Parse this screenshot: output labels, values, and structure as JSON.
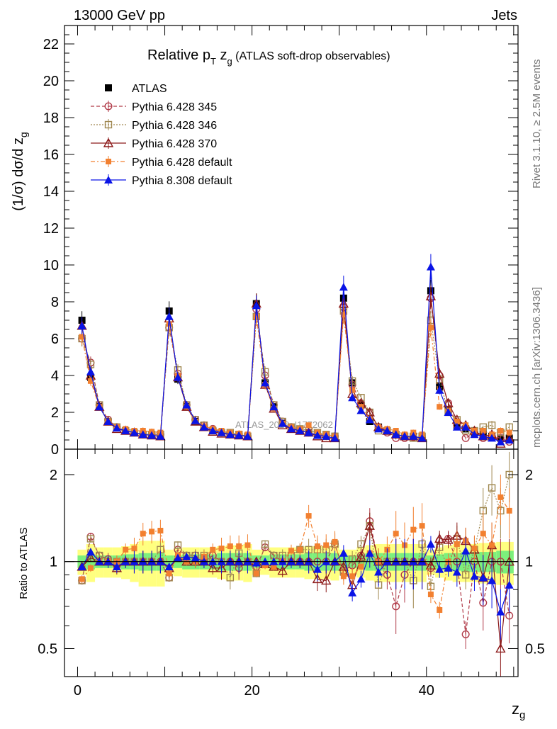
{
  "header": {
    "left": "13000 GeV pp",
    "right": "Jets"
  },
  "side_labels": {
    "rivet": "Rivet 3.1.10, ≥ 2.5M events",
    "mcplots": "mcplots.cern.ch [arXiv:1306.3436]"
  },
  "watermark": "ATLAS_2019_I1772062",
  "chart_data": [
    {
      "type": "scatter",
      "title_main": "Relative p",
      "title_sub1": "T",
      "title_mid": " z",
      "title_sub2": "g",
      "title_paren": " (ATLAS soft-drop observables)",
      "ylabel": "(1/σ) dσ/d z",
      "ylabel_sub": "g",
      "xlim": [
        -1.5,
        50.5
      ],
      "ylim": [
        0,
        23
      ],
      "y_ticks": [
        0,
        2,
        4,
        6,
        8,
        10,
        12,
        14,
        16,
        18,
        20,
        22
      ],
      "legend_position": "top-left",
      "x": [
        0.5,
        1.5,
        2.5,
        3.5,
        4.5,
        5.5,
        6.5,
        7.5,
        8.5,
        9.5,
        10.5,
        11.5,
        12.5,
        13.5,
        14.5,
        15.5,
        16.5,
        17.5,
        18.5,
        19.5,
        20.5,
        21.5,
        22.5,
        23.5,
        24.5,
        25.5,
        26.5,
        27.5,
        28.5,
        29.5,
        30.5,
        31.5,
        32.5,
        33.5,
        34.5,
        35.5,
        36.5,
        37.5,
        38.5,
        39.5,
        40.5,
        41.5,
        42.5,
        43.5,
        44.5,
        45.5,
        46.5,
        47.5,
        48.5,
        49.5
      ],
      "series": [
        {
          "name": "ATLAS",
          "color": "#000000",
          "marker": "square-filled",
          "line": "none",
          "values": [
            7.0,
            3.9,
            2.3,
            1.5,
            1.2,
            1.0,
            0.9,
            0.8,
            0.75,
            0.7,
            7.5,
            3.8,
            2.3,
            1.5,
            1.2,
            1.0,
            0.9,
            0.8,
            0.75,
            0.7,
            7.9,
            3.6,
            2.3,
            1.4,
            1.1,
            1.0,
            0.9,
            0.8,
            0.7,
            0.6,
            8.2,
            3.6,
            2.4,
            1.5,
            1.2,
            1.0,
            0.8,
            0.7,
            0.7,
            0.6,
            8.6,
            3.4,
            2.1,
            1.3,
            1.1,
            0.9,
            0.8,
            0.7,
            0.6,
            0.6
          ]
        },
        {
          "name": "Pythia 6.428 345",
          "color": "#b03a48",
          "marker": "circle-open",
          "line": "dashed",
          "values": [
            6.0,
            4.7,
            2.4,
            1.6,
            1.2,
            1.0,
            0.9,
            0.8,
            0.8,
            0.8,
            6.6,
            4.1,
            2.4,
            1.6,
            1.3,
            1.1,
            0.9,
            0.8,
            0.75,
            0.7,
            7.6,
            4.0,
            2.4,
            1.5,
            1.2,
            1.0,
            0.9,
            0.8,
            0.75,
            0.7,
            7.7,
            3.5,
            2.5,
            2.0,
            1.2,
            0.9,
            0.6,
            0.6,
            0.65,
            0.6,
            8.2,
            4.0,
            2.5,
            1.3,
            0.6,
            0.9,
            0.6,
            0.7,
            0.6,
            0.4
          ]
        },
        {
          "name": "Pythia 6.428 346",
          "color": "#a08850",
          "marker": "square-open",
          "line": "dotted",
          "values": [
            6.0,
            4.6,
            2.4,
            1.5,
            1.2,
            1.0,
            0.9,
            0.8,
            0.8,
            0.8,
            6.6,
            4.3,
            2.4,
            1.6,
            1.3,
            1.0,
            0.9,
            0.9,
            0.8,
            0.7,
            7.2,
            4.2,
            2.4,
            1.5,
            1.2,
            1.1,
            1.0,
            0.9,
            0.8,
            0.7,
            7.5,
            3.7,
            2.8,
            2.0,
            1.0,
            1.0,
            0.8,
            0.7,
            0.6,
            0.7,
            7.0,
            3.8,
            2.0,
            1.6,
            1.0,
            1.0,
            1.2,
            1.3,
            0.9,
            1.2
          ]
        },
        {
          "name": "Pythia 6.428 370",
          "color": "#8c1a1a",
          "marker": "triangle-open",
          "line": "solid",
          "values": [
            6.7,
            4.0,
            2.3,
            1.5,
            1.1,
            1.0,
            0.9,
            0.8,
            0.75,
            0.7,
            7.1,
            3.9,
            2.3,
            1.5,
            1.2,
            0.95,
            0.85,
            0.8,
            0.75,
            0.7,
            7.9,
            3.5,
            2.2,
            1.3,
            1.1,
            1.0,
            0.9,
            0.7,
            0.6,
            0.6,
            7.9,
            3.0,
            2.5,
            2.0,
            1.2,
            1.0,
            0.8,
            0.7,
            0.7,
            0.6,
            8.3,
            4.1,
            2.5,
            1.6,
            1.3,
            1.0,
            0.7,
            0.8,
            0.3,
            0.6
          ]
        },
        {
          "name": "Pythia 6.428 default",
          "color": "#f28030",
          "marker": "square-filled-small",
          "line": "dashdot",
          "values": [
            6.1,
            3.7,
            2.3,
            1.5,
            1.2,
            1.1,
            1.0,
            1.0,
            0.95,
            0.9,
            6.8,
            4.0,
            2.3,
            1.5,
            1.25,
            1.1,
            1.0,
            0.9,
            0.85,
            0.8,
            7.2,
            3.5,
            2.2,
            1.4,
            1.2,
            1.1,
            1.3,
            0.9,
            0.8,
            0.7,
            7.3,
            3.2,
            2.3,
            1.6,
            1.2,
            1.1,
            1.0,
            0.8,
            0.9,
            0.8,
            6.6,
            2.3,
            2.1,
            1.5,
            1.3,
            1.0,
            1.0,
            0.8,
            1.0,
            0.9
          ]
        },
        {
          "name": "Pythia 8.308 default",
          "color": "#0a14e6",
          "marker": "triangle-filled",
          "line": "solid",
          "values": [
            6.7,
            4.2,
            2.3,
            1.5,
            1.15,
            1.0,
            0.9,
            0.8,
            0.75,
            0.7,
            7.2,
            3.9,
            2.4,
            1.55,
            1.2,
            1.0,
            0.9,
            0.8,
            0.75,
            0.7,
            7.8,
            3.6,
            2.3,
            1.4,
            1.1,
            1.0,
            0.9,
            0.75,
            0.7,
            0.6,
            8.8,
            2.8,
            2.1,
            1.6,
            1.1,
            1.0,
            0.8,
            0.7,
            0.7,
            0.6,
            9.9,
            3.2,
            2.0,
            1.2,
            1.2,
            0.8,
            0.7,
            0.6,
            0.4,
            0.5
          ]
        }
      ]
    },
    {
      "type": "scatter",
      "ylabel": "Ratio to ATLAS",
      "xlabel": "z",
      "xlabel_sub": "g",
      "xlim": [
        -1.5,
        50.5
      ],
      "ylim": [
        0.4,
        2.45
      ],
      "y_scale": "log",
      "y_ticks": [
        0.5,
        1,
        2
      ],
      "x_ticks": [
        0,
        20,
        40
      ],
      "reference_line": 1,
      "uncertainty_band": {
        "inner_color": "#7cf07c",
        "outer_color": "#ffff80",
        "inner_half_width": [
          0.05,
          0.06,
          0.05,
          0.05,
          0.05,
          0.06,
          0.06,
          0.07,
          0.07,
          0.07,
          0.05,
          0.05,
          0.06,
          0.06,
          0.06,
          0.06,
          0.07,
          0.07,
          0.07,
          0.07,
          0.05,
          0.05,
          0.06,
          0.06,
          0.06,
          0.06,
          0.07,
          0.07,
          0.07,
          0.07,
          0.05,
          0.05,
          0.06,
          0.07,
          0.07,
          0.07,
          0.07,
          0.07,
          0.07,
          0.07,
          0.05,
          0.06,
          0.07,
          0.07,
          0.08,
          0.08,
          0.08,
          0.08,
          0.09,
          0.09
        ],
        "outer_half_width": [
          0.1,
          0.15,
          0.12,
          0.12,
          0.12,
          0.13,
          0.15,
          0.18,
          0.18,
          0.18,
          0.1,
          0.11,
          0.12,
          0.12,
          0.12,
          0.12,
          0.13,
          0.14,
          0.14,
          0.15,
          0.1,
          0.1,
          0.12,
          0.12,
          0.12,
          0.12,
          0.13,
          0.13,
          0.13,
          0.14,
          0.1,
          0.1,
          0.12,
          0.14,
          0.15,
          0.15,
          0.15,
          0.15,
          0.15,
          0.15,
          0.1,
          0.12,
          0.14,
          0.15,
          0.15,
          0.15,
          0.16,
          0.16,
          0.17,
          0.17
        ]
      },
      "series": [
        {
          "name": "Pythia 6.428 345",
          "values": [
            0.86,
            1.22,
            1.05,
            1.02,
            0.97,
            1.0,
            1.0,
            1.0,
            1.0,
            1.0,
            0.88,
            1.1,
            1.05,
            1.05,
            1.0,
            1.05,
            1.0,
            1.0,
            0.95,
            1.0,
            0.96,
            1.12,
            1.05,
            1.0,
            1.0,
            1.0,
            1.0,
            1.0,
            1.0,
            1.15,
            0.93,
            0.97,
            1.05,
            1.38,
            1.0,
            0.9,
            0.7,
            0.9,
            1.0,
            1.0,
            0.95,
            1.18,
            1.2,
            1.0,
            0.56,
            1.0,
            0.72,
            1.0,
            1.0,
            0.65
          ]
        },
        {
          "name": "Pythia 6.428 346",
          "values": [
            0.86,
            1.2,
            1.05,
            1.0,
            1.0,
            1.0,
            1.0,
            1.0,
            1.0,
            1.1,
            0.88,
            1.14,
            1.05,
            1.05,
            1.05,
            1.0,
            1.0,
            0.88,
            1.07,
            1.0,
            0.91,
            1.15,
            1.05,
            1.05,
            1.05,
            1.1,
            1.1,
            1.1,
            1.1,
            1.15,
            0.92,
            1.02,
            1.15,
            1.33,
            0.83,
            1.0,
            1.0,
            1.0,
            0.86,
            1.15,
            0.82,
            1.12,
            0.95,
            1.2,
            0.9,
            1.1,
            1.5,
            1.8,
            1.5,
            2.0
          ]
        },
        {
          "name": "Pythia 6.428 370",
          "values": [
            0.96,
            1.03,
            1.0,
            1.0,
            0.95,
            1.0,
            1.0,
            1.0,
            1.0,
            1.0,
            0.95,
            1.03,
            1.0,
            1.0,
            1.0,
            0.95,
            0.95,
            1.0,
            1.0,
            1.0,
            1.0,
            0.98,
            0.96,
            0.93,
            1.0,
            1.0,
            1.0,
            0.87,
            0.86,
            1.0,
            0.96,
            0.83,
            1.04,
            1.33,
            1.0,
            1.0,
            1.0,
            1.0,
            1.0,
            1.0,
            0.97,
            1.2,
            1.19,
            1.23,
            1.18,
            1.1,
            0.88,
            1.14,
            0.5,
            1.0
          ]
        },
        {
          "name": "Pythia 6.428 default",
          "values": [
            0.87,
            0.95,
            1.0,
            1.0,
            1.0,
            1.1,
            1.11,
            1.25,
            1.27,
            1.28,
            0.91,
            1.05,
            1.0,
            1.0,
            1.04,
            1.1,
            1.11,
            1.13,
            1.13,
            1.14,
            0.91,
            0.97,
            0.96,
            1.0,
            1.09,
            1.1,
            1.44,
            1.13,
            1.14,
            1.17,
            0.89,
            0.89,
            0.96,
            1.07,
            1.0,
            1.1,
            1.25,
            1.14,
            1.29,
            1.33,
            0.77,
            0.68,
            1.0,
            1.15,
            1.18,
            1.11,
            1.25,
            1.14,
            1.67,
            1.5
          ]
        },
        {
          "name": "Pythia 8.308 default",
          "values": [
            0.96,
            1.08,
            1.0,
            1.0,
            0.96,
            1.0,
            1.0,
            1.0,
            1.0,
            1.0,
            0.96,
            1.03,
            1.04,
            1.03,
            1.0,
            1.0,
            1.0,
            1.0,
            1.0,
            1.0,
            0.99,
            1.0,
            1.0,
            1.0,
            1.0,
            1.0,
            1.0,
            0.94,
            1.0,
            1.0,
            1.07,
            0.78,
            0.87,
            1.07,
            0.92,
            1.0,
            1.0,
            1.0,
            1.0,
            1.0,
            1.15,
            0.94,
            0.95,
            0.92,
            1.09,
            0.89,
            0.88,
            0.86,
            0.67,
            0.83
          ]
        }
      ]
    }
  ]
}
